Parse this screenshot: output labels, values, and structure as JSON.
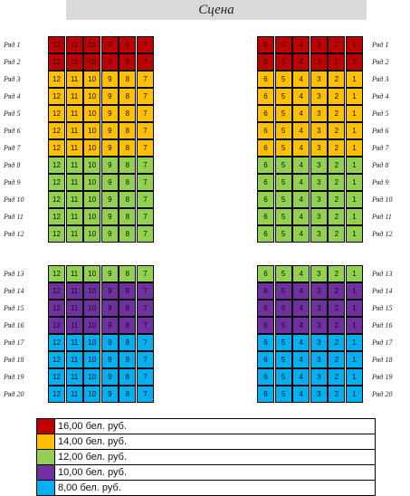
{
  "stage_label": "Сцена",
  "row_prefix": "Ряд",
  "left_block_seats": [
    12,
    11,
    10,
    9,
    8,
    7
  ],
  "right_block_seats": [
    6,
    5,
    4,
    3,
    2,
    1
  ],
  "price_colors": {
    "16": "#c00000",
    "14": "#ffc000",
    "12": "#92d050",
    "10": "#7030a0",
    "8": "#00b0f0"
  },
  "rows": [
    {
      "number": 1,
      "price": "16"
    },
    {
      "number": 2,
      "price": "16"
    },
    {
      "number": 3,
      "price": "14"
    },
    {
      "number": 4,
      "price": "14"
    },
    {
      "number": 5,
      "price": "14"
    },
    {
      "number": 6,
      "price": "14"
    },
    {
      "number": 7,
      "price": "14"
    },
    {
      "number": 8,
      "price": "12"
    },
    {
      "number": 9,
      "price": "12"
    },
    {
      "number": 10,
      "price": "12"
    },
    {
      "number": 11,
      "price": "12"
    },
    {
      "number": 12,
      "price": "12"
    },
    {
      "number": 13,
      "price": "12"
    },
    {
      "number": 14,
      "price": "10"
    },
    {
      "number": 15,
      "price": "10"
    },
    {
      "number": 16,
      "price": "10"
    },
    {
      "number": 17,
      "price": "8"
    },
    {
      "number": 18,
      "price": "8"
    },
    {
      "number": 19,
      "price": "8"
    },
    {
      "number": 20,
      "price": "8"
    }
  ],
  "legend": [
    {
      "price": "16",
      "label": "16,00 бел. руб."
    },
    {
      "price": "14",
      "label": "14,00 бел. руб."
    },
    {
      "price": "12",
      "label": "12,00 бел. руб."
    },
    {
      "price": "10",
      "label": "10,00 бел. руб."
    },
    {
      "price": "8",
      "label": "8,00 бел. руб."
    }
  ]
}
